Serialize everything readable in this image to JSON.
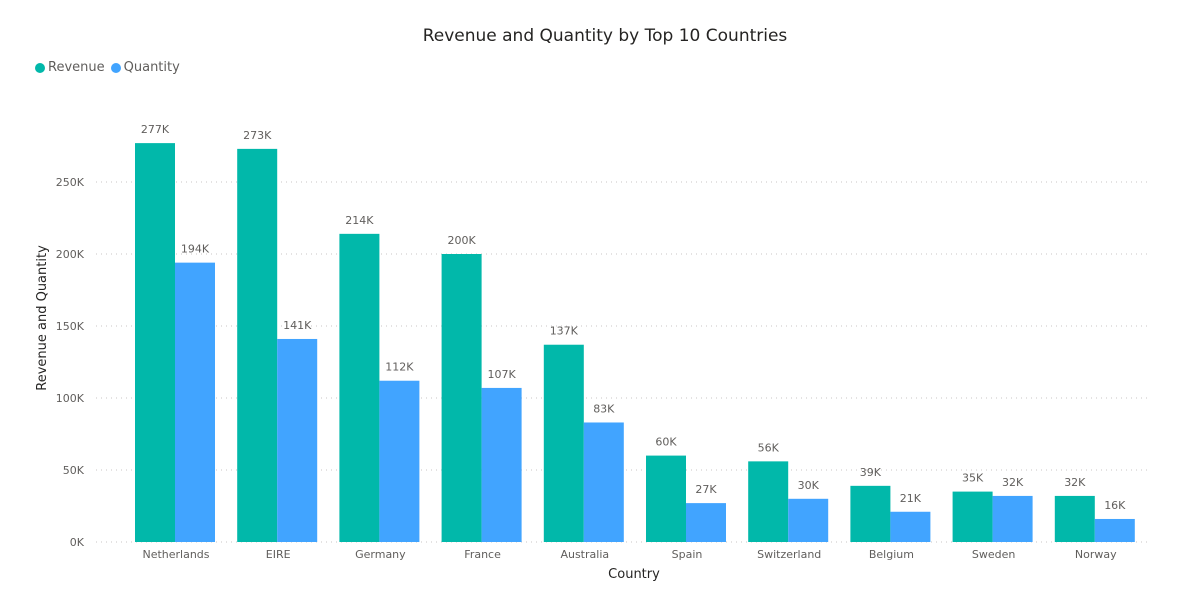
{
  "chart_data": {
    "type": "bar",
    "title": "Revenue and Quantity by Top 10 Countries",
    "xlabel": "Country",
    "ylabel": "Revenue and Quantity",
    "categories": [
      "Netherlands",
      "EIRE",
      "Germany",
      "France",
      "Australia",
      "Spain",
      "Switzerland",
      "Belgium",
      "Sweden",
      "Norway"
    ],
    "series": [
      {
        "name": "Revenue",
        "color": "#01B8AA",
        "values": [
          277000,
          273000,
          214000,
          200000,
          137000,
          60000,
          56000,
          39000,
          35000,
          32000
        ],
        "labels": [
          "277K",
          "273K",
          "214K",
          "200K",
          "137K",
          "60K",
          "56K",
          "39K",
          "35K",
          "32K"
        ]
      },
      {
        "name": "Quantity",
        "color": "#41A4FF",
        "values": [
          194000,
          141000,
          112000,
          107000,
          83000,
          27000,
          30000,
          21000,
          32000,
          16000
        ],
        "labels": [
          "194K",
          "141K",
          "112K",
          "107K",
          "83K",
          "27K",
          "30K",
          "21K",
          "32K",
          "16K"
        ]
      }
    ],
    "ylim": [
      0,
      300000
    ],
    "yticks": [
      0,
      50000,
      100000,
      150000,
      200000,
      250000
    ],
    "ytick_labels": [
      "0K",
      "50K",
      "100K",
      "150K",
      "200K",
      "250K"
    ],
    "grid": true,
    "legend_position": "top-left"
  }
}
